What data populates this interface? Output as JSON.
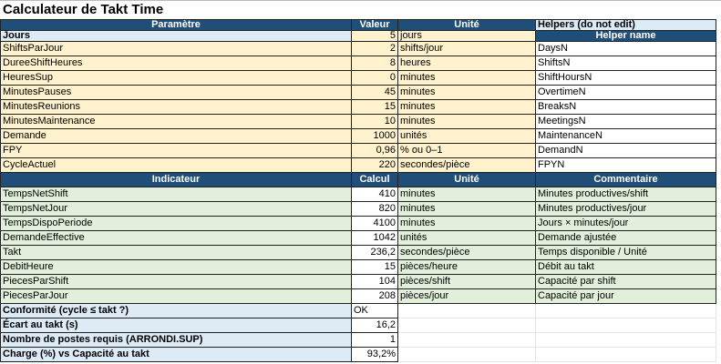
{
  "title": "Calculateur de Takt Time",
  "colors": {
    "header": "#1f4e78",
    "param": "#fff2cc",
    "indicator": "#e2efda",
    "summary": "#ddebf7"
  },
  "params": {
    "headers": [
      "Paramètre",
      "Valeur",
      "Unité"
    ],
    "helpers_title": "Helpers (do not edit)",
    "helper_header": "Helper name",
    "rows": [
      {
        "name": "Jours",
        "value": "5",
        "unit": "jours"
      },
      {
        "name": "ShiftsParJour",
        "value": "2",
        "unit": "shifts/jour",
        "helper": "DaysN"
      },
      {
        "name": "DureeShiftHeures",
        "value": "8",
        "unit": "heures",
        "helper": "ShiftsN"
      },
      {
        "name": "HeuresSup",
        "value": "0",
        "unit": "minutes",
        "helper": "ShiftHoursN"
      },
      {
        "name": "MinutesPauses",
        "value": "45",
        "unit": "minutes",
        "helper": "OvertimeN"
      },
      {
        "name": "MinutesReunions",
        "value": "15",
        "unit": "minutes",
        "helper": "BreaksN"
      },
      {
        "name": "MinutesMaintenance",
        "value": "10",
        "unit": "minutes",
        "helper": "MeetingsN"
      },
      {
        "name": "Demande",
        "value": "1000",
        "unit": "unités",
        "helper": "MaintenanceN"
      },
      {
        "name": "FPY",
        "value": "0,96",
        "unit": "% ou 0–1",
        "helper": "DemandN"
      },
      {
        "name": "CycleActuel",
        "value": "220",
        "unit": "secondes/pièce",
        "helper": "FPYN"
      }
    ]
  },
  "indicators": {
    "headers": [
      "Indicateur",
      "Calcul",
      "Unité",
      "Commentaire"
    ],
    "rows": [
      {
        "name": "TempsNetShift",
        "value": "410",
        "unit": "minutes",
        "comment": "Minutes productives/shift"
      },
      {
        "name": "TempsNetJour",
        "value": "820",
        "unit": "minutes",
        "comment": "Minutes productives/jour"
      },
      {
        "name": "TempsDispoPeriode",
        "value": "4100",
        "unit": "minutes",
        "comment": "Jours × minutes/jour"
      },
      {
        "name": "DemandeEffective",
        "value": "1042",
        "unit": "unités",
        "comment": "Demande ajustée"
      },
      {
        "name": "Takt",
        "value": "236,2",
        "unit": "secondes/pièce",
        "comment": "Temps disponible / Unité"
      },
      {
        "name": "DebitHeure",
        "value": "15",
        "unit": "pièces/heure",
        "comment": "Débit au takt"
      },
      {
        "name": "PiecesParShift",
        "value": "104",
        "unit": "pièces/shift",
        "comment": "Capacité par shift"
      },
      {
        "name": "PiecesParJour",
        "value": "208",
        "unit": "pièces/jour",
        "comment": "Capacité par jour"
      }
    ]
  },
  "summary": [
    {
      "name": "Conformité (cycle ≤ takt ?)",
      "value": "OK"
    },
    {
      "name": "Écart au takt (s)",
      "value": "16,2"
    },
    {
      "name": "Nombre de postes requis (ARRONDI.SUP)",
      "value": "1"
    },
    {
      "name": "Charge (%) vs Capacité au takt",
      "value": "93,2%"
    }
  ]
}
